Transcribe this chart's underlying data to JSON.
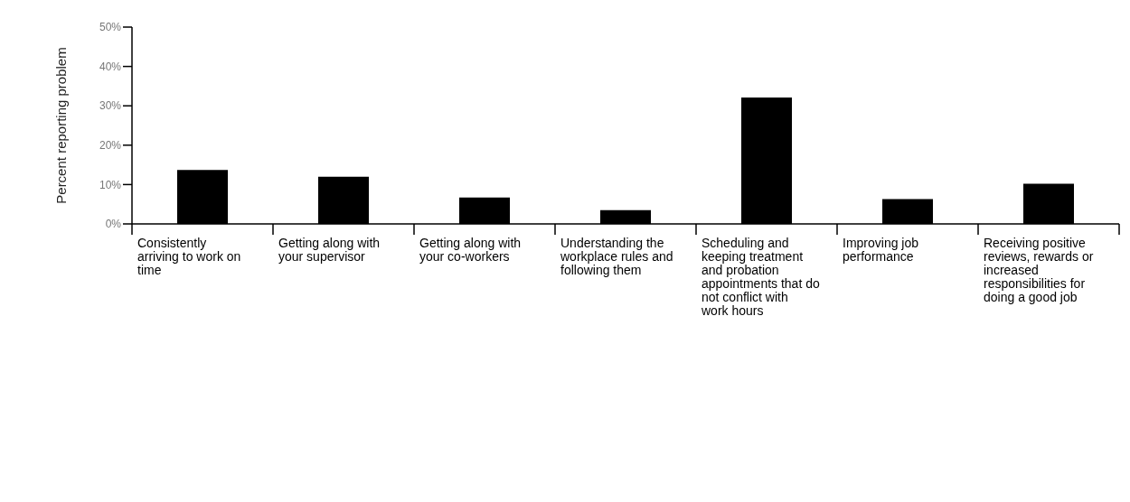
{
  "chart_data": {
    "type": "bar",
    "ylabel": "Percent reporting problem",
    "categories": [
      "Consistently arriving to work on time",
      "Getting along with your supervisor",
      "Getting along with your co-workers",
      "Understanding the workplace rules and following them",
      "Scheduling and keeping treatment and probation appointments that do not conflict with work hours",
      "Improving job performance",
      "Receiving positive reviews, rewards or increased responsibilities for doing a good job"
    ],
    "values": [
      13.7,
      12.0,
      6.7,
      3.5,
      32.1,
      6.3,
      10.2
    ],
    "color": "#000000",
    "ylim": [
      0,
      50
    ],
    "yticks": [
      {
        "value": 0,
        "label": "0%"
      },
      {
        "value": 10,
        "label": "10%"
      },
      {
        "value": 20,
        "label": "20%"
      },
      {
        "value": 30,
        "label": "30%"
      },
      {
        "value": 40,
        "label": "40%"
      },
      {
        "value": 50,
        "label": "50%"
      }
    ],
    "grid": false,
    "legend": false
  }
}
